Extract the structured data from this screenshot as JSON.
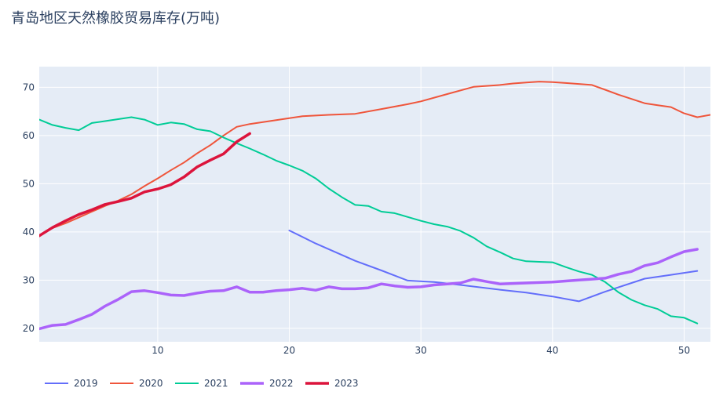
{
  "chart_data": {
    "type": "line",
    "title": "青岛地区天然橡胶贸易库存(万吨)",
    "xlabel": "",
    "ylabel": "",
    "xlim": [
      1,
      52
    ],
    "ylim": [
      17.2,
      74.3
    ],
    "x_ticks": [
      10,
      20,
      30,
      40,
      50
    ],
    "y_ticks": [
      20,
      30,
      40,
      50,
      60,
      70
    ],
    "grid": true,
    "legend_position": "bottom-left",
    "series": [
      {
        "name": "2019",
        "color": "#636efa",
        "width": 2,
        "x": [
          20,
          22,
          25,
          27,
          29,
          31,
          33,
          36,
          38,
          40,
          42,
          44,
          47,
          49,
          51
        ],
        "y": [
          40.3,
          37.6,
          34.0,
          32.0,
          29.9,
          29.6,
          29.0,
          28.0,
          27.4,
          26.6,
          25.6,
          27.6,
          30.3,
          31.1,
          31.9
        ]
      },
      {
        "name": "2020",
        "color": "#ef553b",
        "width": 2,
        "x": [
          1,
          2,
          3,
          4,
          5,
          6,
          7,
          8,
          9,
          10,
          11,
          12,
          13,
          14,
          15,
          16,
          17,
          18,
          19,
          20,
          21,
          23,
          25,
          27,
          29,
          30,
          32,
          34,
          36,
          37,
          38,
          39,
          40,
          41,
          42,
          43,
          44,
          45,
          46,
          47,
          48,
          49,
          50,
          51,
          52
        ],
        "y": [
          39.3,
          40.8,
          41.8,
          43.0,
          44.2,
          45.4,
          46.5,
          47.8,
          49.5,
          51.1,
          52.8,
          54.4,
          56.3,
          58.0,
          60.0,
          61.8,
          62.4,
          62.8,
          63.2,
          63.6,
          64.0,
          64.3,
          64.5,
          65.5,
          66.5,
          67.1,
          68.6,
          70.1,
          70.5,
          70.8,
          71.0,
          71.2,
          71.1,
          70.9,
          70.7,
          70.5,
          69.5,
          68.5,
          67.6,
          66.7,
          66.3,
          65.9,
          64.6,
          63.8,
          64.3
        ]
      },
      {
        "name": "2021",
        "color": "#00cc96",
        "width": 2,
        "x": [
          1,
          2,
          3,
          4,
          5,
          6,
          7,
          8,
          9,
          10,
          11,
          12,
          13,
          14,
          15,
          16,
          17,
          18,
          19,
          20,
          21,
          22,
          23,
          24,
          25,
          26,
          27,
          28,
          29,
          30,
          31,
          32,
          33,
          34,
          35,
          36,
          37,
          38,
          39,
          40,
          41,
          42,
          43,
          44,
          45,
          46,
          47,
          48,
          49,
          50,
          51
        ],
        "y": [
          63.3,
          62.2,
          61.6,
          61.1,
          62.6,
          63.0,
          63.4,
          63.8,
          63.3,
          62.2,
          62.7,
          62.4,
          61.3,
          60.9,
          59.6,
          58.4,
          57.3,
          56.1,
          54.8,
          53.8,
          52.7,
          51.1,
          49.0,
          47.2,
          45.6,
          45.4,
          44.2,
          43.9,
          43.1,
          42.3,
          41.6,
          41.1,
          40.2,
          38.8,
          37.0,
          35.8,
          34.5,
          33.9,
          33.8,
          33.7,
          32.7,
          31.8,
          31.1,
          29.6,
          27.5,
          25.9,
          24.8,
          24.0,
          22.5,
          22.2,
          21.0
        ]
      },
      {
        "name": "2022",
        "color": "#ab63fa",
        "width": 3.5,
        "x": [
          1,
          2,
          3,
          4,
          5,
          6,
          7,
          8,
          9,
          10,
          11,
          12,
          13,
          14,
          15,
          16,
          17,
          18,
          19,
          20,
          21,
          22,
          23,
          24,
          25,
          26,
          27,
          28,
          29,
          30,
          31,
          32,
          33,
          34,
          35,
          36,
          37,
          38,
          39,
          40,
          41,
          42,
          43,
          44,
          45,
          46,
          47,
          48,
          49,
          50,
          51
        ],
        "y": [
          19.9,
          20.6,
          20.8,
          21.8,
          22.9,
          24.6,
          26.0,
          27.6,
          27.8,
          27.4,
          26.9,
          26.8,
          27.3,
          27.7,
          27.8,
          28.6,
          27.5,
          27.5,
          27.8,
          28.0,
          28.3,
          27.9,
          28.6,
          28.2,
          28.2,
          28.4,
          29.2,
          28.8,
          28.5,
          28.6,
          29.0,
          29.2,
          29.4,
          30.2,
          29.7,
          29.2,
          29.3,
          29.4,
          29.5,
          29.6,
          29.8,
          30.0,
          30.2,
          30.4,
          31.2,
          31.8,
          33.0,
          33.6,
          34.8,
          35.9,
          36.4
        ]
      },
      {
        "name": "2023",
        "color": "#dc143c",
        "width": 3.5,
        "x": [
          1,
          2,
          3,
          4,
          5,
          6,
          7,
          8,
          9,
          10,
          11,
          12,
          13,
          14,
          15,
          16,
          17
        ],
        "y": [
          39.2,
          40.9,
          42.3,
          43.6,
          44.6,
          45.7,
          46.3,
          47.0,
          48.3,
          48.9,
          49.8,
          51.4,
          53.5,
          54.9,
          56.2,
          58.7,
          60.4
        ]
      }
    ]
  }
}
